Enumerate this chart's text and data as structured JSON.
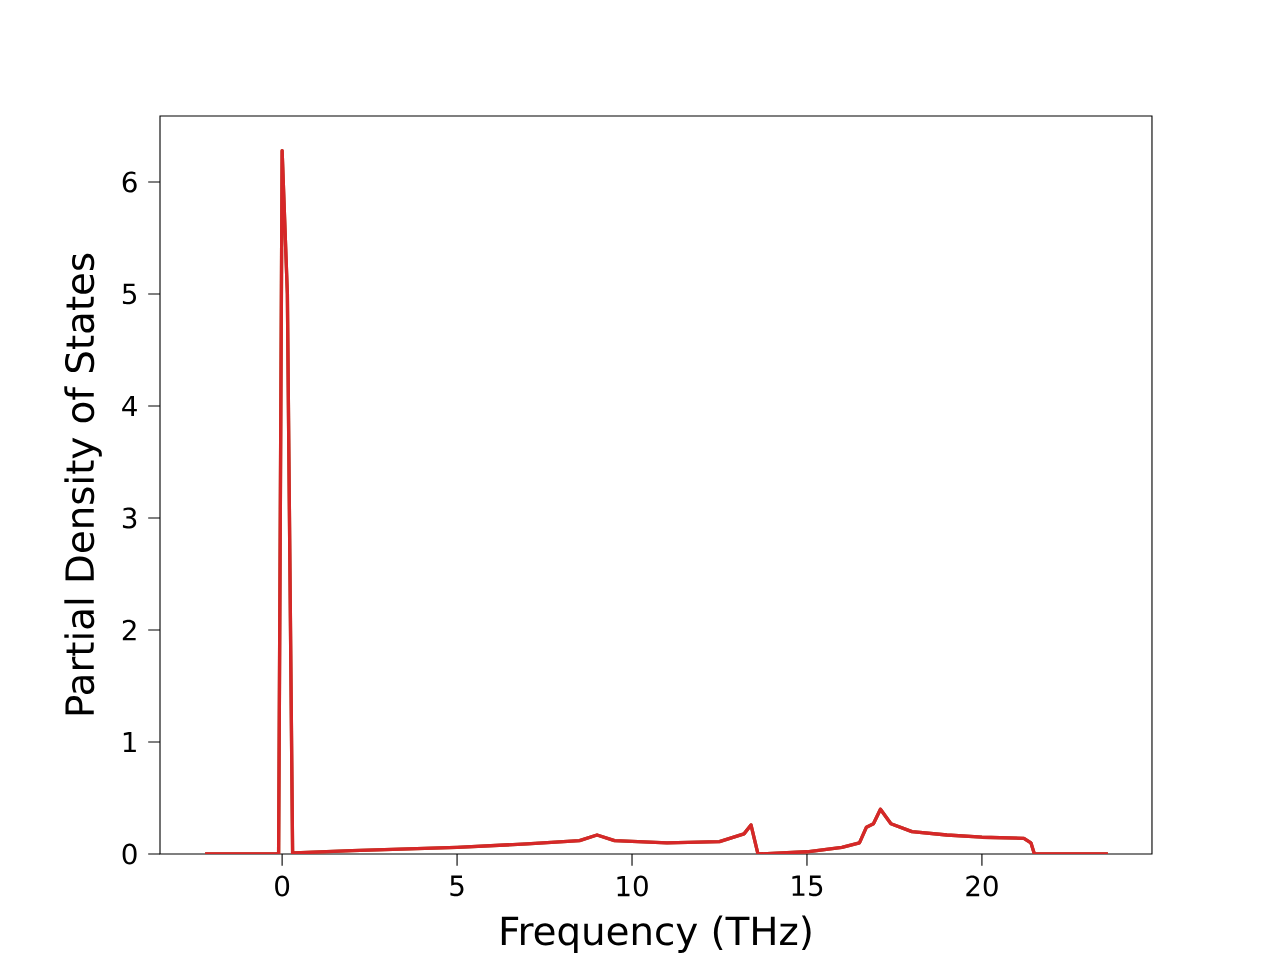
{
  "chart_data": {
    "type": "line",
    "xlabel": "Frequency (THz)",
    "ylabel": "Partial Density of States",
    "xlim": [
      -3.49,
      24.86
    ],
    "ylim": [
      0,
      6.59
    ],
    "xticks": [
      0,
      5,
      10,
      15,
      20
    ],
    "yticks": [
      0,
      1,
      2,
      3,
      4,
      5,
      6
    ],
    "grid": false,
    "marker": "none",
    "line_style": "solid",
    "x": [
      -2.2,
      -0.1,
      0.0,
      0.15,
      0.3,
      0.35,
      2,
      5,
      7,
      8.5,
      9,
      9.5,
      11,
      12.5,
      13.2,
      13.4,
      13.6,
      15,
      16,
      16.5,
      16.7,
      16.9,
      17.1,
      17.4,
      18,
      19,
      20,
      21.2,
      21.4,
      21.5,
      23.6
    ],
    "series": [
      {
        "color": "#9c5a2c",
        "values": [
          0,
          0,
          6.28,
          5.0,
          0,
          0.01,
          0.03,
          0.06,
          0.09,
          0.12,
          0.17,
          0.12,
          0.1,
          0.11,
          0.18,
          0.26,
          0,
          0.02,
          0.06,
          0.1,
          0.24,
          0.27,
          0.4,
          0.27,
          0.2,
          0.17,
          0.15,
          0.14,
          0.1,
          0,
          0
        ]
      },
      {
        "color": "#d62728",
        "values": [
          0,
          0,
          6.28,
          5.0,
          0,
          0.01,
          0.03,
          0.06,
          0.09,
          0.12,
          0.17,
          0.12,
          0.1,
          0.11,
          0.18,
          0.26,
          0,
          0.02,
          0.06,
          0.1,
          0.24,
          0.27,
          0.4,
          0.27,
          0.2,
          0.17,
          0.15,
          0.14,
          0.1,
          0,
          0
        ]
      }
    ]
  }
}
